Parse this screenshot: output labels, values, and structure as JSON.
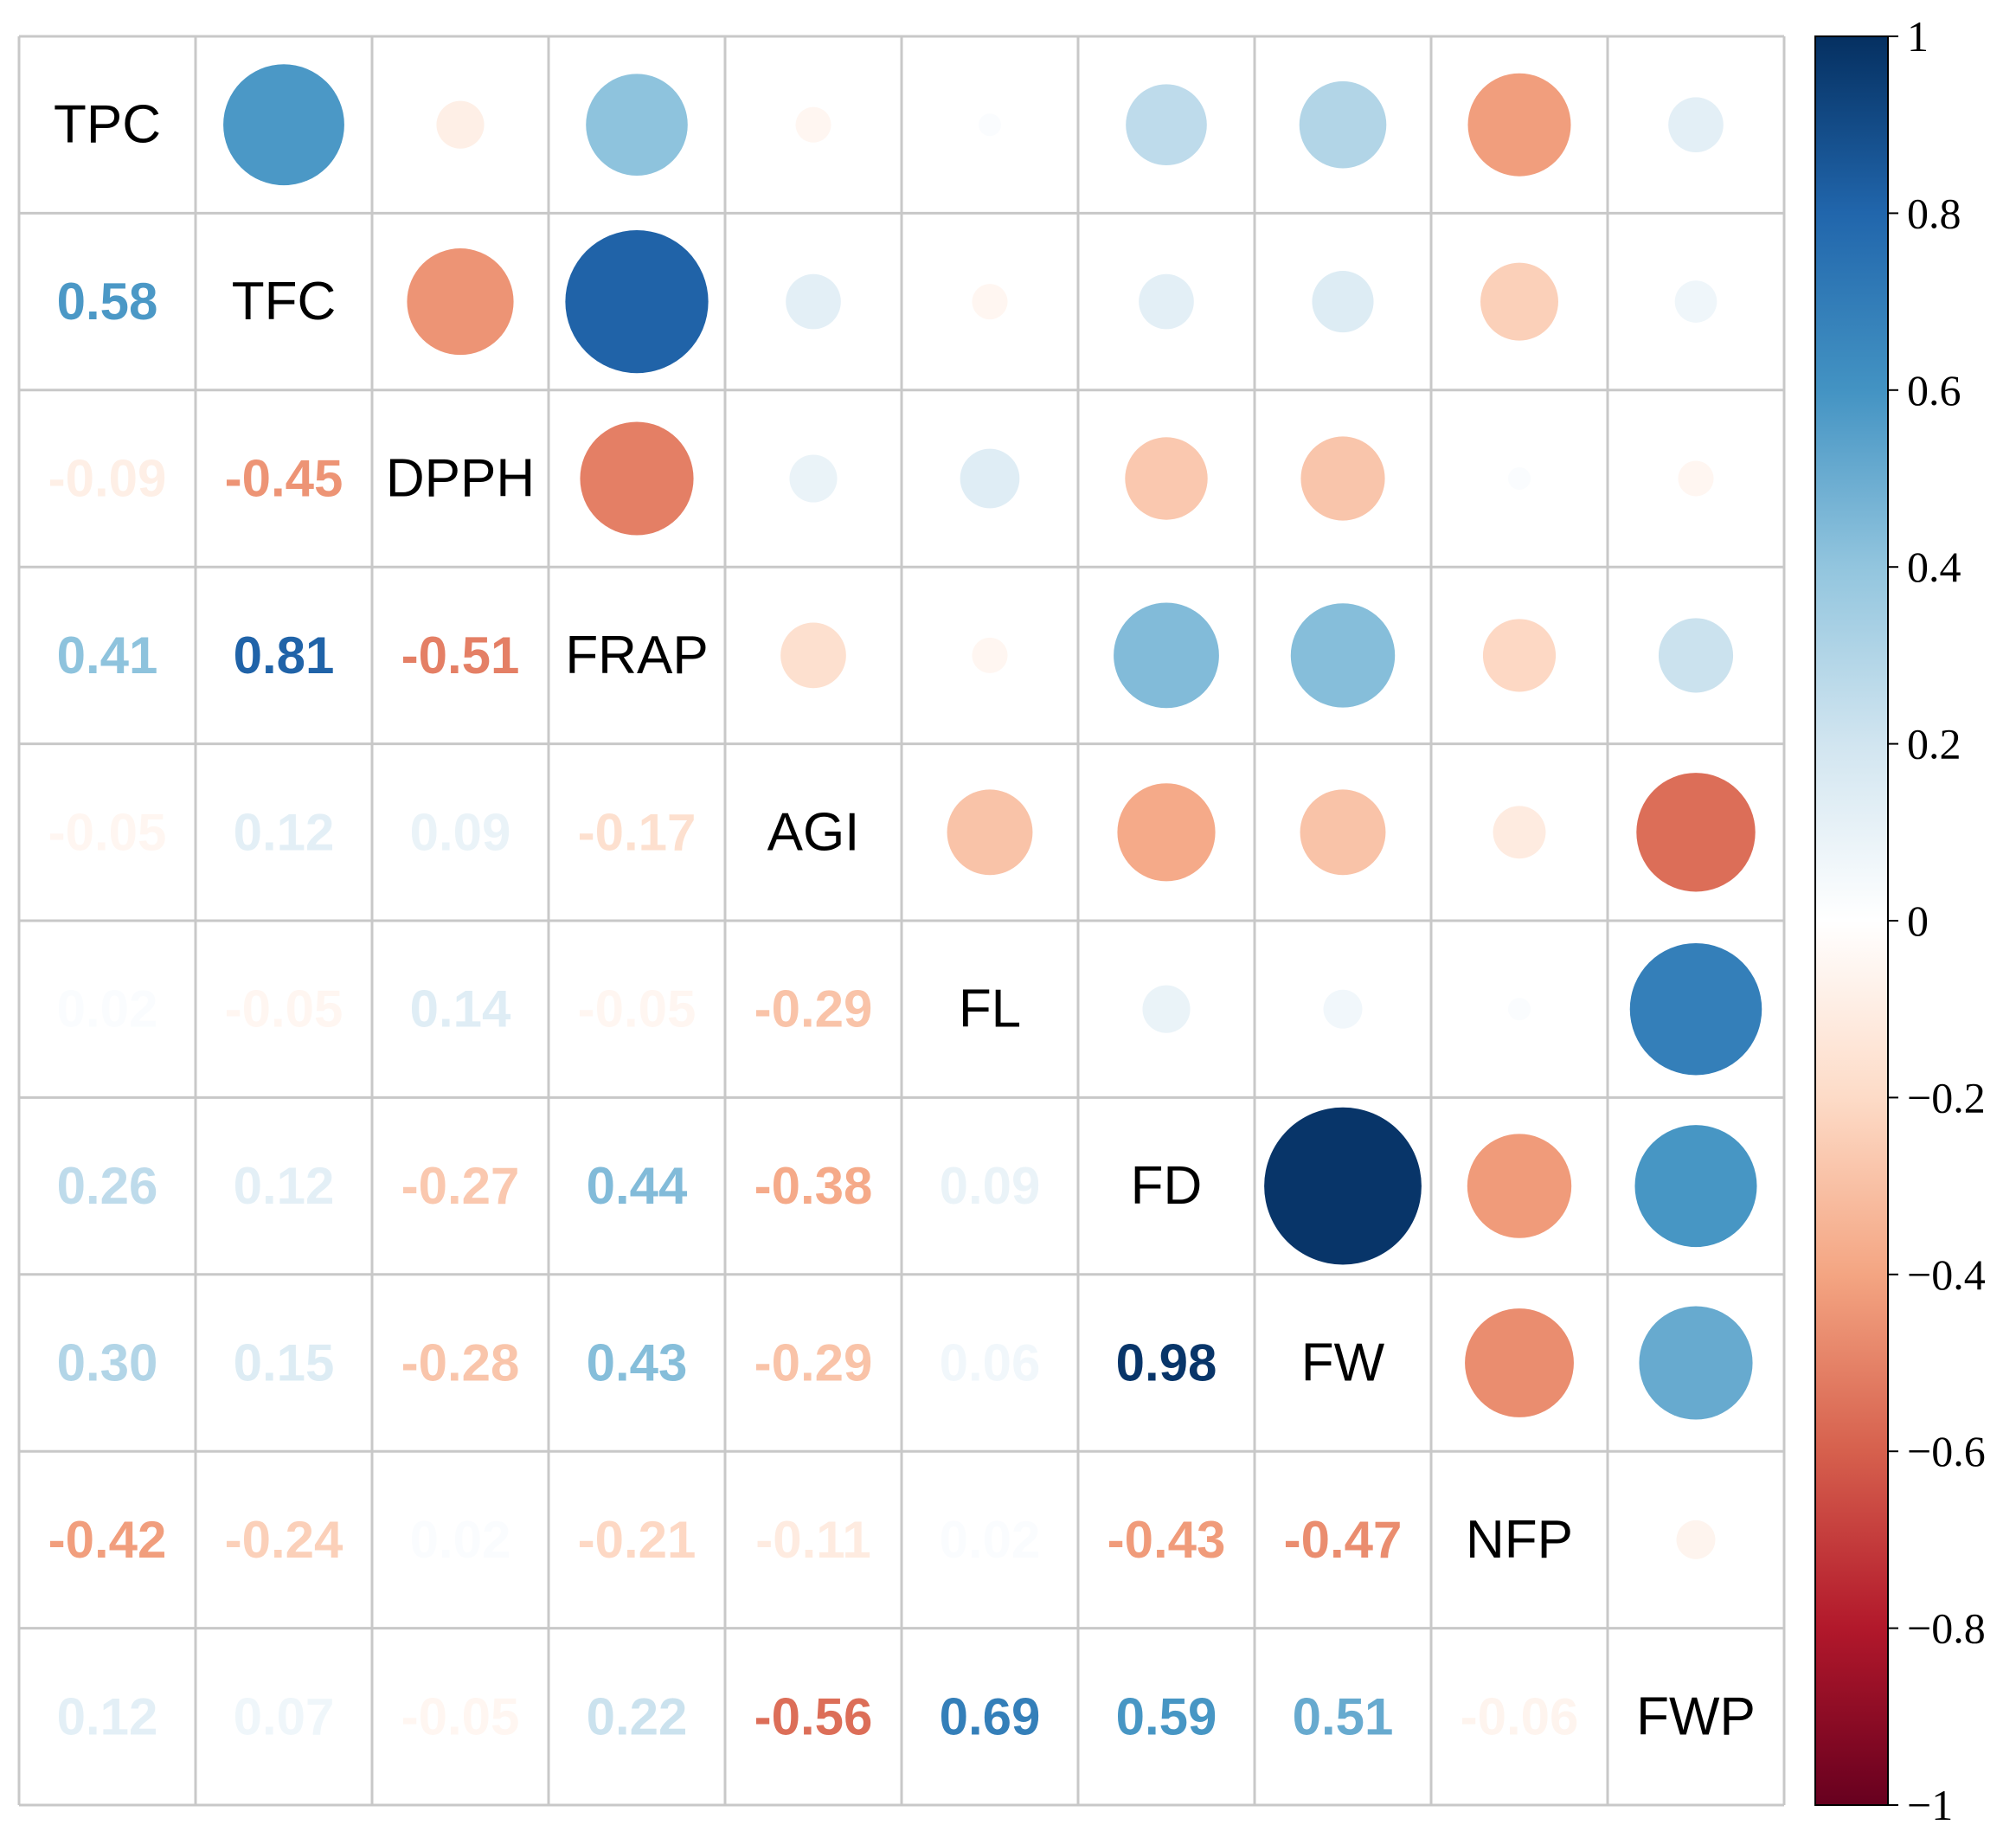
{
  "chart_data": {
    "type": "heatmap",
    "variables": [
      "TPC",
      "TFC",
      "DPPH",
      "FRAP",
      "AGI",
      "FL",
      "FD",
      "FW",
      "NFP",
      "FWP"
    ],
    "matrix": [
      [
        1.0,
        0.58,
        -0.09,
        0.41,
        -0.05,
        0.02,
        0.26,
        0.3,
        -0.42,
        0.12
      ],
      [
        0.58,
        1.0,
        -0.45,
        0.81,
        0.12,
        -0.05,
        0.12,
        0.15,
        -0.24,
        0.07
      ],
      [
        -0.09,
        -0.45,
        1.0,
        -0.51,
        0.09,
        0.14,
        -0.27,
        -0.28,
        0.02,
        -0.05
      ],
      [
        0.41,
        0.81,
        -0.51,
        1.0,
        -0.17,
        -0.05,
        0.44,
        0.43,
        -0.21,
        0.22
      ],
      [
        -0.05,
        0.12,
        0.09,
        -0.17,
        1.0,
        -0.29,
        -0.38,
        -0.29,
        -0.11,
        -0.56
      ],
      [
        0.02,
        -0.05,
        0.14,
        -0.05,
        -0.29,
        1.0,
        0.09,
        0.06,
        0.02,
        0.69
      ],
      [
        0.26,
        0.12,
        -0.27,
        0.44,
        -0.38,
        0.09,
        1.0,
        0.98,
        -0.43,
        0.59
      ],
      [
        0.3,
        0.15,
        -0.28,
        0.43,
        -0.29,
        0.06,
        0.98,
        1.0,
        -0.47,
        0.51
      ],
      [
        -0.42,
        -0.24,
        0.02,
        -0.21,
        -0.11,
        0.02,
        -0.43,
        -0.47,
        1.0,
        -0.06
      ],
      [
        0.12,
        0.07,
        -0.05,
        0.22,
        -0.56,
        0.69,
        0.59,
        0.51,
        -0.06,
        1.0
      ]
    ],
    "labels": [
      [
        "TPC",
        "",
        "",
        "",
        "",
        "",
        "",
        "",
        "",
        ""
      ],
      [
        "0.58",
        "TFC",
        "",
        "",
        "",
        "",
        "",
        "",
        "",
        ""
      ],
      [
        "-0.09",
        "-0.45",
        "DPPH",
        "",
        "",
        "",
        "",
        "",
        "",
        ""
      ],
      [
        "0.41",
        "0.81",
        "-0.51",
        "FRAP",
        "",
        "",
        "",
        "",
        "",
        ""
      ],
      [
        "-0.05",
        "0.12",
        "0.09",
        "-0.17",
        "AGI",
        "",
        "",
        "",
        "",
        ""
      ],
      [
        "0.02",
        "-0.05",
        "0.14",
        "-0.05",
        "-0.29",
        "FL",
        "",
        "",
        "",
        ""
      ],
      [
        "0.26",
        "0.12",
        "-0.27",
        "0.44",
        "-0.38",
        "0.09",
        "FD",
        "",
        "",
        ""
      ],
      [
        "0.30",
        "0.15",
        "-0.28",
        "0.43",
        "-0.29",
        "0.06",
        "0.98",
        "FW",
        "",
        ""
      ],
      [
        "-0.42",
        "-0.24",
        "0.02",
        "-0.21",
        "-0.11",
        "0.02",
        "-0.43",
        "-0.47",
        "NFP",
        ""
      ],
      [
        "0.12",
        "0.07",
        "-0.05",
        "0.22",
        "-0.56",
        "0.69",
        "0.59",
        "0.51",
        "-0.06",
        "FWP"
      ]
    ],
    "lower_method": "number",
    "upper_method": "circle",
    "colorbar": {
      "range": [
        -1,
        1
      ],
      "ticks": [
        "1",
        "0.8",
        "0.6",
        "0.4",
        "0.2",
        "0",
        "−0.2",
        "−0.4",
        "−0.6",
        "−0.8",
        "−1"
      ],
      "tick_values": [
        1,
        0.8,
        0.6,
        0.4,
        0.2,
        0,
        -0.2,
        -0.4,
        -0.6,
        -0.8,
        -1
      ]
    },
    "palette": {
      "stops": [
        -1,
        -0.8,
        -0.6,
        -0.4,
        -0.2,
        0,
        0.2,
        0.4,
        0.6,
        0.8,
        1
      ],
      "colors": [
        "#67001F",
        "#B2182B",
        "#D6604D",
        "#F4A582",
        "#FDDBC7",
        "#FFFFFF",
        "#D1E5F0",
        "#92C5DE",
        "#4393C3",
        "#2166AC",
        "#053061"
      ]
    }
  }
}
